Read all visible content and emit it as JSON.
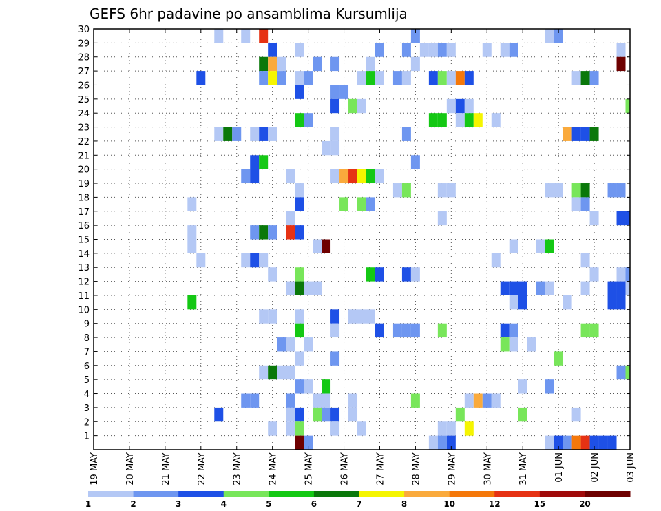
{
  "chart_data": {
    "type": "heatmap",
    "title": "GEFS 6hr padavine po ansamblima Kursumlija",
    "x_unit": "6h step from 19 MAY 00",
    "x_range": [
      0,
      60
    ],
    "x_ticks": [
      {
        "x": 0,
        "label": "19 MAY"
      },
      {
        "x": 4,
        "label": "20 MAY"
      },
      {
        "x": 8,
        "label": "21 MAY"
      },
      {
        "x": 12,
        "label": "22 MAY"
      },
      {
        "x": 16,
        "label": "23 MAY"
      },
      {
        "x": 20,
        "label": "24 MAY"
      },
      {
        "x": 24,
        "label": "25 MAY"
      },
      {
        "x": 28,
        "label": "26 MAY"
      },
      {
        "x": 32,
        "label": "27 MAY"
      },
      {
        "x": 36,
        "label": "28 MAY"
      },
      {
        "x": 40,
        "label": "29 MAY"
      },
      {
        "x": 44,
        "label": "30 MAY"
      },
      {
        "x": 48,
        "label": "31 MAY"
      },
      {
        "x": 52,
        "label": "01 JUN"
      },
      {
        "x": 56,
        "label": "02 JUN"
      },
      {
        "x": 60,
        "label": "03 JUN"
      }
    ],
    "y_ticks": [
      1,
      2,
      3,
      4,
      5,
      6,
      7,
      8,
      9,
      10,
      11,
      12,
      13,
      14,
      15,
      16,
      17,
      18,
      19,
      20,
      21,
      22,
      23,
      24,
      25,
      26,
      27,
      28,
      29,
      30
    ],
    "y_range": [
      0,
      30
    ],
    "grid": true,
    "legend": {
      "position": "bottom",
      "labels": [
        "1",
        "2",
        "3",
        "4",
        "5",
        "6",
        "7",
        "8",
        "10",
        "12",
        "15",
        "20"
      ],
      "colors": [
        "#b4c8f5",
        "#6e96f0",
        "#1e50e6",
        "#78e65a",
        "#14c814",
        "#0a780a",
        "#f5f500",
        "#faaa3c",
        "#f5780a",
        "#e63214",
        "#a00a0a",
        "#6e0000"
      ]
    },
    "color_levels": [
      "#b4c8f5",
      "#6e96f0",
      "#1e50e6",
      "#78e65a",
      "#14c814",
      "#0a780a",
      "#f5f500",
      "#faaa3c",
      "#f5780a",
      "#e63214",
      "#a00a0a",
      "#6e0000"
    ],
    "cells": [
      [
        14,
        30,
        0
      ],
      [
        17,
        30,
        0
      ],
      [
        19,
        30,
        9
      ],
      [
        36,
        30,
        1
      ],
      [
        51,
        30,
        0
      ],
      [
        52,
        30,
        1
      ],
      [
        20,
        29,
        2
      ],
      [
        23,
        29,
        0
      ],
      [
        32,
        29,
        1
      ],
      [
        35,
        29,
        1
      ],
      [
        37,
        29,
        0
      ],
      [
        38,
        29,
        0
      ],
      [
        39,
        29,
        1
      ],
      [
        40,
        29,
        0
      ],
      [
        44,
        29,
        0
      ],
      [
        46,
        29,
        0
      ],
      [
        47,
        29,
        1
      ],
      [
        59,
        29,
        0
      ],
      [
        19,
        28,
        5
      ],
      [
        20,
        28,
        7
      ],
      [
        21,
        28,
        0
      ],
      [
        25,
        28,
        1
      ],
      [
        27,
        28,
        1
      ],
      [
        31,
        28,
        0
      ],
      [
        36,
        28,
        0
      ],
      [
        59,
        28,
        11
      ],
      [
        12,
        27,
        2
      ],
      [
        19,
        27,
        1
      ],
      [
        20,
        27,
        6
      ],
      [
        21,
        27,
        1
      ],
      [
        23,
        27,
        0
      ],
      [
        24,
        27,
        1
      ],
      [
        30,
        27,
        0
      ],
      [
        31,
        27,
        4
      ],
      [
        32,
        27,
        0
      ],
      [
        34,
        27,
        1
      ],
      [
        35,
        27,
        0
      ],
      [
        38,
        27,
        2
      ],
      [
        39,
        27,
        3
      ],
      [
        40,
        27,
        0
      ],
      [
        41,
        27,
        8
      ],
      [
        42,
        27,
        2
      ],
      [
        54,
        27,
        0
      ],
      [
        55,
        27,
        5
      ],
      [
        56,
        27,
        1
      ],
      [
        23,
        26,
        2
      ],
      [
        27,
        26,
        1
      ],
      [
        28,
        26,
        1
      ],
      [
        27,
        25,
        2
      ],
      [
        29,
        25,
        3
      ],
      [
        30,
        25,
        0
      ],
      [
        40,
        25,
        0
      ],
      [
        41,
        25,
        2
      ],
      [
        42,
        25,
        0
      ],
      [
        60,
        25,
        3
      ],
      [
        23,
        24,
        4
      ],
      [
        24,
        24,
        1
      ],
      [
        38,
        24,
        4
      ],
      [
        39,
        24,
        4
      ],
      [
        41,
        24,
        0
      ],
      [
        42,
        24,
        4
      ],
      [
        43,
        24,
        6
      ],
      [
        45,
        24,
        0
      ],
      [
        14,
        23,
        0
      ],
      [
        15,
        23,
        5
      ],
      [
        16,
        23,
        1
      ],
      [
        18,
        23,
        0
      ],
      [
        19,
        23,
        2
      ],
      [
        20,
        23,
        0
      ],
      [
        27,
        23,
        0
      ],
      [
        35,
        23,
        1
      ],
      [
        53,
        23,
        7
      ],
      [
        54,
        23,
        2
      ],
      [
        55,
        23,
        2
      ],
      [
        56,
        23,
        5
      ],
      [
        26,
        22,
        0
      ],
      [
        27,
        22,
        0
      ],
      [
        18,
        21,
        2
      ],
      [
        19,
        21,
        4
      ],
      [
        36,
        21,
        1
      ],
      [
        17,
        20,
        1
      ],
      [
        18,
        20,
        2
      ],
      [
        22,
        20,
        0
      ],
      [
        27,
        20,
        0
      ],
      [
        28,
        20,
        7
      ],
      [
        29,
        20,
        9
      ],
      [
        30,
        20,
        6
      ],
      [
        31,
        20,
        4
      ],
      [
        32,
        20,
        0
      ],
      [
        23,
        19,
        0
      ],
      [
        34,
        19,
        0
      ],
      [
        35,
        19,
        3
      ],
      [
        39,
        19,
        0
      ],
      [
        40,
        19,
        0
      ],
      [
        51,
        19,
        0
      ],
      [
        52,
        19,
        0
      ],
      [
        54,
        19,
        3
      ],
      [
        55,
        19,
        5
      ],
      [
        58,
        19,
        1
      ],
      [
        59,
        19,
        1
      ],
      [
        11,
        18,
        0
      ],
      [
        23,
        18,
        2
      ],
      [
        28,
        18,
        3
      ],
      [
        30,
        18,
        3
      ],
      [
        31,
        18,
        1
      ],
      [
        54,
        18,
        0
      ],
      [
        55,
        18,
        1
      ],
      [
        22,
        17,
        0
      ],
      [
        39,
        17,
        0
      ],
      [
        56,
        17,
        0
      ],
      [
        59,
        17,
        2
      ],
      [
        60,
        17,
        2
      ],
      [
        11,
        16,
        0
      ],
      [
        18,
        16,
        1
      ],
      [
        19,
        16,
        5
      ],
      [
        20,
        16,
        1
      ],
      [
        22,
        16,
        9
      ],
      [
        23,
        16,
        2
      ],
      [
        11,
        15,
        0
      ],
      [
        25,
        15,
        0
      ],
      [
        26,
        15,
        11
      ],
      [
        47,
        15,
        0
      ],
      [
        50,
        15,
        0
      ],
      [
        51,
        15,
        4
      ],
      [
        12,
        14,
        0
      ],
      [
        17,
        14,
        0
      ],
      [
        18,
        14,
        2
      ],
      [
        19,
        14,
        0
      ],
      [
        45,
        14,
        0
      ],
      [
        55,
        14,
        0
      ],
      [
        20,
        13,
        0
      ],
      [
        23,
        13,
        3
      ],
      [
        31,
        13,
        4
      ],
      [
        32,
        13,
        2
      ],
      [
        35,
        13,
        2
      ],
      [
        36,
        13,
        0
      ],
      [
        56,
        13,
        0
      ],
      [
        59,
        13,
        0
      ],
      [
        60,
        13,
        1
      ],
      [
        22,
        12,
        0
      ],
      [
        23,
        12,
        5
      ],
      [
        24,
        12,
        0
      ],
      [
        25,
        12,
        0
      ],
      [
        46,
        12,
        2
      ],
      [
        47,
        12,
        2
      ],
      [
        48,
        12,
        2
      ],
      [
        50,
        12,
        1
      ],
      [
        51,
        12,
        0
      ],
      [
        55,
        12,
        0
      ],
      [
        58,
        12,
        2
      ],
      [
        59,
        12,
        2
      ],
      [
        60,
        12,
        0
      ],
      [
        11,
        11,
        4
      ],
      [
        47,
        11,
        0
      ],
      [
        48,
        11,
        2
      ],
      [
        53,
        11,
        0
      ],
      [
        58,
        11,
        2
      ],
      [
        59,
        11,
        2
      ],
      [
        19,
        10,
        0
      ],
      [
        20,
        10,
        0
      ],
      [
        23,
        10,
        0
      ],
      [
        27,
        10,
        2
      ],
      [
        29,
        10,
        0
      ],
      [
        30,
        10,
        0
      ],
      [
        31,
        10,
        0
      ],
      [
        23,
        9,
        4
      ],
      [
        27,
        9,
        0
      ],
      [
        32,
        9,
        2
      ],
      [
        34,
        9,
        1
      ],
      [
        35,
        9,
        1
      ],
      [
        36,
        9,
        1
      ],
      [
        39,
        9,
        3
      ],
      [
        46,
        9,
        2
      ],
      [
        47,
        9,
        1
      ],
      [
        55,
        9,
        3
      ],
      [
        56,
        9,
        3
      ],
      [
        21,
        8,
        1
      ],
      [
        22,
        8,
        0
      ],
      [
        24,
        8,
        0
      ],
      [
        46,
        8,
        3
      ],
      [
        47,
        8,
        0
      ],
      [
        49,
        8,
        0
      ],
      [
        23,
        7,
        0
      ],
      [
        27,
        7,
        1
      ],
      [
        52,
        7,
        3
      ],
      [
        19,
        6,
        0
      ],
      [
        20,
        6,
        5
      ],
      [
        21,
        6,
        0
      ],
      [
        22,
        6,
        0
      ],
      [
        59,
        6,
        1
      ],
      [
        60,
        6,
        3
      ],
      [
        23,
        5,
        1
      ],
      [
        24,
        5,
        0
      ],
      [
        26,
        5,
        4
      ],
      [
        48,
        5,
        0
      ],
      [
        51,
        5,
        1
      ],
      [
        17,
        4,
        1
      ],
      [
        18,
        4,
        1
      ],
      [
        22,
        4,
        1
      ],
      [
        25,
        4,
        0
      ],
      [
        26,
        4,
        0
      ],
      [
        29,
        4,
        0
      ],
      [
        36,
        4,
        3
      ],
      [
        42,
        4,
        0
      ],
      [
        43,
        4,
        7
      ],
      [
        44,
        4,
        1
      ],
      [
        45,
        4,
        0
      ],
      [
        14,
        3,
        2
      ],
      [
        22,
        3,
        0
      ],
      [
        23,
        3,
        2
      ],
      [
        25,
        3,
        3
      ],
      [
        26,
        3,
        1
      ],
      [
        27,
        3,
        2
      ],
      [
        29,
        3,
        0
      ],
      [
        41,
        3,
        3
      ],
      [
        48,
        3,
        3
      ],
      [
        54,
        3,
        0
      ],
      [
        20,
        2,
        0
      ],
      [
        22,
        2,
        0
      ],
      [
        23,
        2,
        3
      ],
      [
        27,
        2,
        0
      ],
      [
        30,
        2,
        0
      ],
      [
        39,
        2,
        0
      ],
      [
        40,
        2,
        0
      ],
      [
        42,
        2,
        6
      ],
      [
        23,
        1,
        11
      ],
      [
        24,
        1,
        1
      ],
      [
        38,
        1,
        0
      ],
      [
        39,
        1,
        1
      ],
      [
        40,
        1,
        2
      ],
      [
        51,
        1,
        0
      ],
      [
        52,
        1,
        2
      ],
      [
        53,
        1,
        1
      ],
      [
        54,
        1,
        8
      ],
      [
        55,
        1,
        9
      ],
      [
        56,
        1,
        2
      ],
      [
        57,
        1,
        2
      ],
      [
        58,
        1,
        2
      ]
    ]
  }
}
